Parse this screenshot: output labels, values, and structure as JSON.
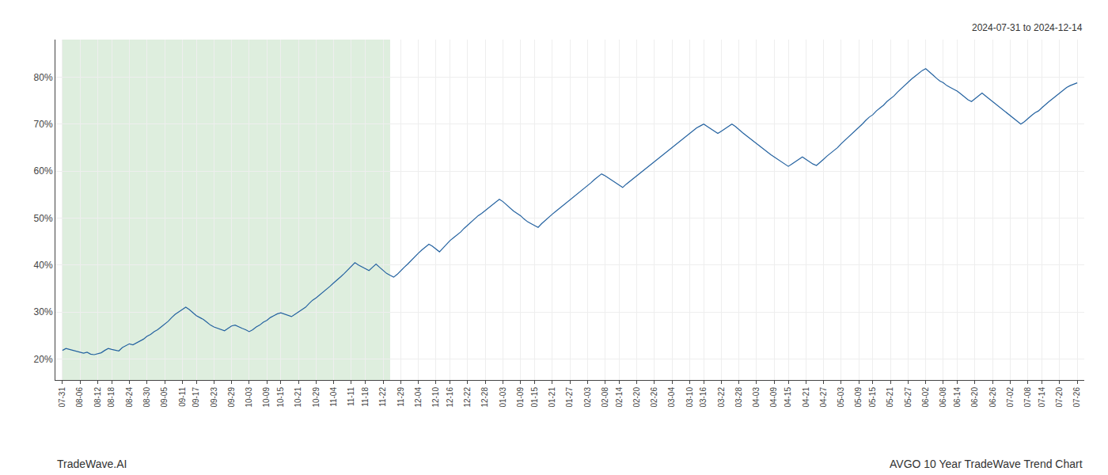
{
  "chart_data": {
    "type": "line",
    "annotations": [
      "2024-07-31 to 2024-12-14",
      "TradeWave.AI",
      "AVGO 10 Year TradeWave Trend Chart"
    ],
    "color": "#2462A0",
    "grid": true,
    "ylim": [
      0.155,
      0.88
    ],
    "yticks": [
      {
        "value": 0.2,
        "label": "20%"
      },
      {
        "value": 0.3,
        "label": "30%"
      },
      {
        "value": 0.4,
        "label": "40%"
      },
      {
        "value": 0.5,
        "label": "50%"
      },
      {
        "value": 0.6,
        "label": "60%"
      },
      {
        "value": 0.7,
        "label": "70%"
      },
      {
        "value": 0.8,
        "label": "80%"
      }
    ],
    "xlim": [
      -2,
      290
    ],
    "shaded_region": {
      "x": [
        0,
        93
      ],
      "color": "#deeede"
    },
    "categories": [
      "07-31",
      null,
      null,
      null,
      null,
      "08-06",
      null,
      null,
      null,
      null,
      "08-12",
      null,
      null,
      null,
      "08-18",
      null,
      null,
      null,
      null,
      "08-24",
      null,
      null,
      null,
      null,
      "08-30",
      null,
      null,
      null,
      null,
      "09-05",
      null,
      null,
      null,
      null,
      "09-11",
      null,
      null,
      null,
      "09-17",
      null,
      null,
      null,
      null,
      "09-23",
      null,
      null,
      null,
      null,
      "09-29",
      null,
      null,
      null,
      null,
      "10-03",
      null,
      null,
      null,
      null,
      "10-09",
      null,
      null,
      null,
      "10-15",
      null,
      null,
      null,
      null,
      "10-21",
      null,
      null,
      null,
      null,
      "10-29",
      null,
      null,
      null,
      null,
      "11-04",
      null,
      null,
      null,
      null,
      "11-11",
      null,
      null,
      null,
      "11-18",
      null,
      null,
      null,
      null,
      "11-22",
      null,
      null,
      null,
      null,
      "11-29",
      null,
      null,
      null,
      null,
      "12-04",
      null,
      null,
      null,
      null,
      "12-10",
      null,
      null,
      null,
      "12-16",
      null,
      null,
      null,
      null,
      "12-22",
      null,
      null,
      null,
      null,
      "12-28",
      null,
      null,
      null,
      null,
      "01-03",
      null,
      null,
      null,
      null,
      "01-09",
      null,
      null,
      null,
      "01-15",
      null,
      null,
      null,
      null,
      "01-21",
      null,
      null,
      null,
      null,
      "01-27",
      null,
      null,
      null,
      null,
      "02-03",
      null,
      null,
      null,
      null,
      "02-08",
      null,
      null,
      null,
      "02-14",
      null,
      null,
      null,
      null,
      "02-20",
      null,
      null,
      null,
      null,
      "02-26",
      null,
      null,
      null,
      null,
      "03-04",
      null,
      null,
      null,
      null,
      "03-10",
      null,
      null,
      null,
      "03-16",
      null,
      null,
      null,
      null,
      "03-22",
      null,
      null,
      null,
      null,
      "03-28",
      null,
      null,
      null,
      null,
      "04-03",
      null,
      null,
      null,
      null,
      "04-09",
      null,
      null,
      null,
      "04-15",
      null,
      null,
      null,
      null,
      "04-21",
      null,
      null,
      null,
      null,
      "04-27",
      null,
      null,
      null,
      null,
      "05-03",
      null,
      null,
      null,
      null,
      "05-09",
      null,
      null,
      null,
      "05-15",
      null,
      null,
      null,
      null,
      "05-21",
      null,
      null,
      null,
      null,
      "05-27",
      null,
      null,
      null,
      null,
      "06-02",
      null,
      null,
      null,
      null,
      "06-08",
      null,
      null,
      null,
      "06-14",
      null,
      null,
      null,
      null,
      "06-20",
      null,
      null,
      null,
      null,
      "06-26",
      null,
      null,
      null,
      null,
      "07-02",
      null,
      null,
      null,
      null,
      "07-08",
      null,
      null,
      null,
      "07-14",
      null,
      null,
      null,
      null,
      "07-20",
      null,
      null,
      null,
      null,
      "07-26"
    ],
    "values": [
      0.218,
      0.222,
      0.22,
      0.218,
      0.215,
      0.213,
      0.212,
      0.214,
      0.21,
      0.209,
      0.211,
      0.213,
      0.218,
      0.222,
      0.22,
      0.219,
      0.217,
      0.224,
      0.228,
      0.232,
      0.23,
      0.234,
      0.238,
      0.242,
      0.248,
      0.252,
      0.258,
      0.262,
      0.268,
      0.274,
      0.28,
      0.288,
      0.295,
      0.3,
      0.305,
      0.31,
      0.305,
      0.298,
      0.292,
      0.288,
      0.284,
      0.278,
      0.272,
      0.268,
      0.265,
      0.262,
      0.26,
      0.265,
      0.27,
      0.272,
      0.268,
      0.265,
      0.262,
      0.258,
      0.262,
      0.268,
      0.272,
      0.278,
      0.282,
      0.288,
      0.292,
      0.296,
      0.298,
      0.295,
      0.292,
      0.29,
      0.295,
      0.3,
      0.305,
      0.31,
      0.318,
      0.325,
      0.33,
      0.336,
      0.342,
      0.348,
      0.355,
      0.362,
      0.368,
      0.375,
      0.382,
      0.39,
      0.398,
      0.405,
      0.4,
      0.396,
      0.392,
      0.388,
      0.395,
      0.402,
      0.395,
      0.388,
      0.382,
      0.378,
      0.374,
      0.38,
      0.388,
      0.395,
      0.402,
      0.41,
      0.418,
      0.425,
      0.432,
      0.438,
      0.444,
      0.44,
      0.434,
      0.428,
      0.436,
      0.444,
      0.452,
      0.458,
      0.464,
      0.47,
      0.478,
      0.485,
      0.492,
      0.498,
      0.505,
      0.51,
      0.516,
      0.522,
      0.528,
      0.534,
      0.54,
      0.535,
      0.528,
      0.522,
      0.515,
      0.51,
      0.505,
      0.498,
      0.492,
      0.488,
      0.484,
      0.48,
      0.488,
      0.495,
      0.502,
      0.508,
      0.514,
      0.52,
      0.526,
      0.532,
      0.538,
      0.544,
      0.55,
      0.556,
      0.562,
      0.568,
      0.575,
      0.582,
      0.588,
      0.594,
      0.59,
      0.585,
      0.58,
      0.575,
      0.57,
      0.565,
      0.572,
      0.578,
      0.584,
      0.59,
      0.596,
      0.602,
      0.608,
      0.614,
      0.62,
      0.626,
      0.632,
      0.638,
      0.644,
      0.65,
      0.656,
      0.662,
      0.668,
      0.674,
      0.68,
      0.686,
      0.692,
      0.696,
      0.7,
      0.695,
      0.69,
      0.685,
      0.68,
      0.685,
      0.69,
      0.695,
      0.7,
      0.695,
      0.688,
      0.682,
      0.676,
      0.67,
      0.664,
      0.658,
      0.652,
      0.646,
      0.64,
      0.635,
      0.63,
      0.625,
      0.62,
      0.615,
      0.61,
      0.615,
      0.62,
      0.625,
      0.63,
      0.625,
      0.62,
      0.615,
      0.612,
      0.618,
      0.625,
      0.632,
      0.638,
      0.644,
      0.65,
      0.658,
      0.665,
      0.672,
      0.678,
      0.685,
      0.692,
      0.7,
      0.708,
      0.715,
      0.72,
      0.728,
      0.734,
      0.74,
      0.748,
      0.754,
      0.76,
      0.768,
      0.775,
      0.782,
      0.79,
      0.796,
      0.802,
      0.808,
      0.814,
      0.818,
      0.812,
      0.805,
      0.798,
      0.792,
      0.788,
      0.782,
      0.778,
      0.774,
      0.77,
      0.764,
      0.758,
      0.752,
      0.748,
      0.754,
      0.76,
      0.766,
      0.76,
      0.754,
      0.748,
      0.742,
      0.736,
      0.73,
      0.724,
      0.718,
      0.712,
      0.706,
      0.7,
      0.705,
      0.712,
      0.718,
      0.724,
      0.728,
      0.735,
      0.742,
      0.748,
      0.754,
      0.76,
      0.766,
      0.772,
      0.778,
      0.782,
      0.785,
      0.788
    ]
  }
}
